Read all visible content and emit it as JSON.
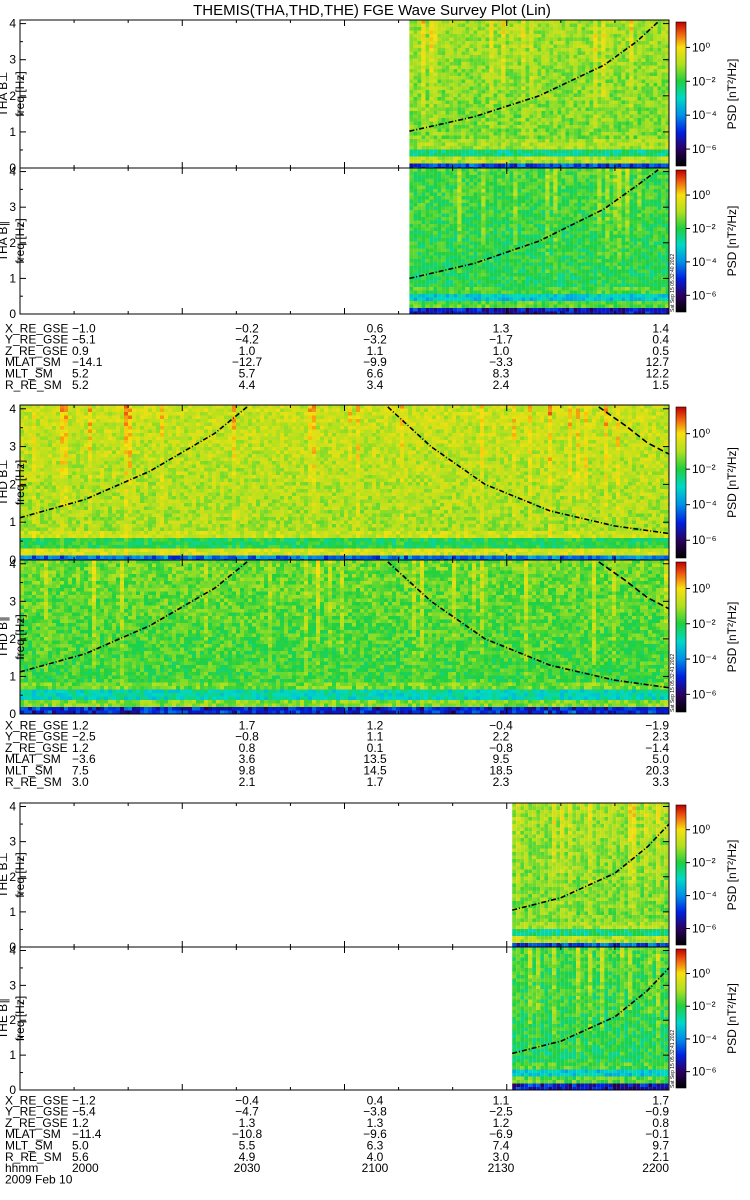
{
  "title": "THEMIS(THA,THD,THE) FGE Wave Survey Plot (Lin)",
  "colors": {
    "black": "#000000"
  },
  "colorbar": {
    "label": "PSD [nT²/Hz]",
    "ticks": [
      {
        "text": "10⁰",
        "value": 0
      },
      {
        "text": "10⁻²",
        "value": -2
      },
      {
        "text": "10⁻⁴",
        "value": -4
      },
      {
        "text": "10⁻⁶",
        "value": -6
      }
    ],
    "range": [
      -7,
      1.5
    ],
    "stops": [
      [
        -7,
        "#000000"
      ],
      [
        -6,
        "#2a0060"
      ],
      [
        -5,
        "#0020e0"
      ],
      [
        -4,
        "#0090e8"
      ],
      [
        -3,
        "#00d8c8"
      ],
      [
        -2,
        "#20d040"
      ],
      [
        -1,
        "#b0e020"
      ],
      [
        0,
        "#f8e010"
      ],
      [
        0.8,
        "#f06010"
      ],
      [
        1.5,
        "#c00000"
      ]
    ]
  },
  "stamps": [
    "Sat Sep 15 05:32:40 2012",
    "Sat Sep 15 05:32:41 2012",
    "Sat Sep 15 05:32:41 2012"
  ],
  "time_axis": {
    "ticks": [
      "2000",
      "2030",
      "2100",
      "2130",
      "2200"
    ],
    "label": "hhmm",
    "date": "2009 Feb 10"
  },
  "chart_data": [
    {
      "type": "heatmap",
      "probe": "THA",
      "ylabel": "THA B⊥",
      "ylabel2": "freq [Hz]",
      "x_range_min": [
        0,
        120
      ],
      "y_range": [
        0,
        4.1
      ],
      "yticks": [
        "0",
        "1",
        "2",
        "3",
        "4"
      ],
      "data_start_min": 72,
      "base_level": -1.3,
      "seed": 11,
      "curves": [
        {
          "style": "dashdot",
          "points": [
            [
              72,
              1.02
            ],
            [
              84,
              1.42
            ],
            [
              96,
              2.0
            ],
            [
              108,
              2.85
            ],
            [
              114,
              3.5
            ],
            [
              118,
              4.05
            ]
          ]
        }
      ]
    },
    {
      "type": "heatmap",
      "probe": "THA",
      "ylabel": "THA B∥",
      "ylabel2": "freq [Hz]",
      "x_range_min": [
        0,
        120
      ],
      "y_range": [
        0,
        4.1
      ],
      "yticks": [
        "0",
        "1",
        "2",
        "3",
        "4"
      ],
      "data_start_min": 72,
      "base_level": -2.0,
      "seed": 23,
      "curves": [
        {
          "style": "dashdot",
          "points": [
            [
              72,
              1.0
            ],
            [
              84,
              1.42
            ],
            [
              96,
              2.05
            ],
            [
              108,
              2.95
            ],
            [
              114,
              3.6
            ],
            [
              118,
              4.05
            ]
          ]
        }
      ]
    },
    {
      "type": "heatmap",
      "probe": "THD",
      "ylabel": "THD B⊥",
      "ylabel2": "freq [Hz]",
      "x_range_min": [
        0,
        120
      ],
      "y_range": [
        0,
        4.1
      ],
      "yticks": [
        "0",
        "1",
        "2",
        "3",
        "4"
      ],
      "data_start_min": 0,
      "base_level": -0.9,
      "seed": 37,
      "curves": [
        {
          "style": "dashdot",
          "points": [
            [
              0,
              1.12
            ],
            [
              12,
              1.6
            ],
            [
              24,
              2.35
            ],
            [
              36,
              3.35
            ],
            [
              42,
              4.05
            ]
          ]
        },
        {
          "style": "dashdot",
          "points": [
            [
              68,
              4.05
            ],
            [
              76,
              3.0
            ],
            [
              86,
              2.0
            ],
            [
              98,
              1.3
            ],
            [
              110,
              0.9
            ],
            [
              120,
              0.7
            ]
          ]
        },
        {
          "style": "dash",
          "points": [
            [
              107,
              4.05
            ],
            [
              112,
              3.55
            ],
            [
              116,
              3.1
            ],
            [
              120,
              2.8
            ]
          ]
        }
      ]
    },
    {
      "type": "heatmap",
      "probe": "THD",
      "ylabel": "THD B∥",
      "ylabel2": "freq [Hz]",
      "x_range_min": [
        0,
        120
      ],
      "y_range": [
        0,
        4.1
      ],
      "yticks": [
        "0",
        "1",
        "2",
        "3",
        "4"
      ],
      "data_start_min": 0,
      "base_level": -1.7,
      "seed": 41,
      "curves": [
        {
          "style": "dashdot",
          "points": [
            [
              0,
              1.12
            ],
            [
              12,
              1.6
            ],
            [
              24,
              2.35
            ],
            [
              36,
              3.35
            ],
            [
              42,
              4.05
            ]
          ]
        },
        {
          "style": "dashdot",
          "points": [
            [
              68,
              4.05
            ],
            [
              76,
              3.0
            ],
            [
              86,
              2.0
            ],
            [
              98,
              1.3
            ],
            [
              110,
              0.9
            ],
            [
              120,
              0.7
            ]
          ]
        },
        {
          "style": "dash",
          "points": [
            [
              107,
              4.05
            ],
            [
              112,
              3.55
            ],
            [
              116,
              3.1
            ],
            [
              120,
              2.8
            ]
          ]
        }
      ]
    },
    {
      "type": "heatmap",
      "probe": "THE",
      "ylabel": "THE B⊥",
      "ylabel2": "freq [Hz]",
      "x_range_min": [
        0,
        120
      ],
      "y_range": [
        0,
        4.1
      ],
      "yticks": [
        "0",
        "1",
        "2",
        "3",
        "4"
      ],
      "data_start_min": 91,
      "base_level": -1.3,
      "seed": 53,
      "curves": [
        {
          "style": "dashdot",
          "points": [
            [
              91,
              1.05
            ],
            [
              100,
              1.4
            ],
            [
              110,
              2.1
            ],
            [
              116,
              2.85
            ],
            [
              120,
              3.5
            ]
          ]
        }
      ]
    },
    {
      "type": "heatmap",
      "probe": "THE",
      "ylabel": "THE B∥",
      "ylabel2": "freq [Hz]",
      "x_range_min": [
        0,
        120
      ],
      "y_range": [
        0,
        4.1
      ],
      "yticks": [
        "0",
        "1",
        "2",
        "3",
        "4"
      ],
      "data_start_min": 91,
      "base_level": -2.0,
      "seed": 67,
      "curves": [
        {
          "style": "dashdot",
          "points": [
            [
              91,
              1.05
            ],
            [
              100,
              1.4
            ],
            [
              110,
              2.1
            ],
            [
              116,
              2.85
            ],
            [
              120,
              3.5
            ]
          ]
        }
      ]
    }
  ],
  "ephemeris": [
    {
      "probe": "THA",
      "rows": [
        {
          "label": "X_RE_GSE",
          "values": [
            "−1.0",
            "−0.2",
            "0.6",
            "1.3",
            "1.4"
          ]
        },
        {
          "label": "Y_RE_GSE",
          "values": [
            "−5.1",
            "−4.2",
            "−3.2",
            "−1.7",
            "0.4"
          ]
        },
        {
          "label": "Z_RE_GSE",
          "values": [
            "0.9",
            "1.0",
            "1.1",
            "1.0",
            "0.5"
          ]
        },
        {
          "label": "MLAT_SM",
          "values": [
            "−14.1",
            "−12.7",
            "−9.9",
            "−3.3",
            "12.7"
          ]
        },
        {
          "label": "MLT_SM",
          "values": [
            "5.2",
            "5.7",
            "6.6",
            "8.3",
            "12.2"
          ]
        },
        {
          "label": "R_RE_SM",
          "values": [
            "5.2",
            "4.4",
            "3.4",
            "2.4",
            "1.5"
          ]
        }
      ]
    },
    {
      "probe": "THD",
      "rows": [
        {
          "label": "X_RE_GSE",
          "values": [
            "1.2",
            "1.7",
            "1.2",
            "−0.4",
            "−1.9"
          ]
        },
        {
          "label": "Y_RE_GSE",
          "values": [
            "−2.5",
            "−0.8",
            "1.1",
            "2.2",
            "2.3"
          ]
        },
        {
          "label": "Z_RE_GSE",
          "values": [
            "1.2",
            "0.8",
            "0.1",
            "−0.8",
            "−1.4"
          ]
        },
        {
          "label": "MLAT_SM",
          "values": [
            "−3.6",
            "3.6",
            "13.5",
            "9.5",
            "5.0"
          ]
        },
        {
          "label": "MLT_SM",
          "values": [
            "7.5",
            "9.8",
            "14.5",
            "18.5",
            "20.3"
          ]
        },
        {
          "label": "R_RE_SM",
          "values": [
            "3.0",
            "2.1",
            "1.7",
            "2.3",
            "3.3"
          ]
        }
      ]
    },
    {
      "probe": "THE",
      "rows": [
        {
          "label": "X_RE_GSE",
          "values": [
            "−1.2",
            "−0.4",
            "0.4",
            "1.1",
            "1.7"
          ]
        },
        {
          "label": "Y_RE_GSE",
          "values": [
            "−5.4",
            "−4.7",
            "−3.8",
            "−2.5",
            "−0.9"
          ]
        },
        {
          "label": "Z_RE_GSE",
          "values": [
            "1.2",
            "1.3",
            "1.3",
            "1.2",
            "0.8"
          ]
        },
        {
          "label": "MLAT_SM",
          "values": [
            "−11.4",
            "−10.8",
            "−9.6",
            "−6.9",
            "−0.1"
          ]
        },
        {
          "label": "MLT_SM",
          "values": [
            "5.0",
            "5.5",
            "6.3",
            "7.4",
            "9.7"
          ]
        },
        {
          "label": "R_RE_SM",
          "values": [
            "5.6",
            "4.9",
            "4.0",
            "3.0",
            "2.1"
          ]
        }
      ]
    }
  ]
}
